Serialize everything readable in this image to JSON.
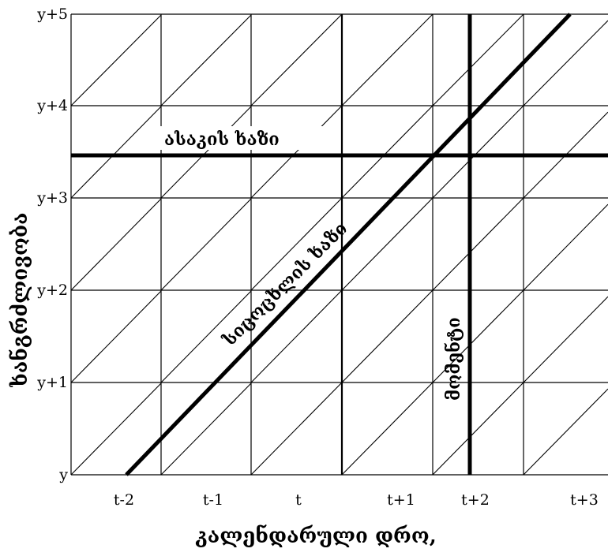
{
  "diagram": {
    "x_ticks": [
      "t-2",
      "t-1",
      "t",
      "t+1",
      "t+2",
      "t+3"
    ],
    "y_ticks": [
      "y",
      "y+1",
      "y+2",
      "y+3",
      "y+4",
      "y+5"
    ],
    "x_axis_title": "კალენდარული დრო,",
    "y_axis_title": "ხანგრძლივობა",
    "age_line_label": "ასაკის ხაზი",
    "life_line_label": "სიცოცხლის ხაზი",
    "moment_line_label": "მომენტი"
  }
}
